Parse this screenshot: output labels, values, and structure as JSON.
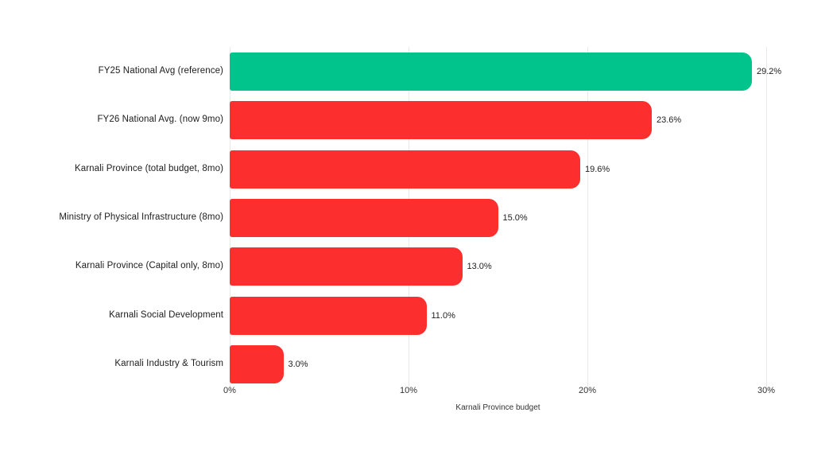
{
  "chart_data": {
    "type": "bar",
    "orientation": "horizontal",
    "title": "",
    "xlabel": "Karnali Province budget",
    "ylabel": "",
    "xlim": [
      0,
      30
    ],
    "grid": true,
    "gridline_color": "#e9e9e9",
    "categories": [
      "FY25 National Avg (reference)",
      "FY26 National Avg. (now 9mo)",
      "Karnali Province (total budget, 8mo)",
      "Ministry of Physical Infrastructure (8mo)",
      "Karnali Province (Capital only, 8mo)",
      "Karnali Social Development",
      "Karnali Industry & Tourism"
    ],
    "values": [
      29.2,
      23.6,
      19.6,
      15.0,
      13.0,
      11.0,
      3.0
    ],
    "value_labels": [
      "29.2%",
      "23.6%",
      "19.6%",
      "15.0%",
      "13.0%",
      "11.0%",
      "3.0%"
    ],
    "bar_colors": [
      "#00C48B",
      "#FC2E2E",
      "#FC2E2E",
      "#FC2E2E",
      "#FC2E2E",
      "#FC2E2E",
      "#FC2E2E"
    ],
    "highlight_color": "#00C48B",
    "default_color": "#FC2E2E",
    "x_ticks": [
      {
        "value": 0,
        "label": "0%"
      },
      {
        "value": 10,
        "label": "10%"
      },
      {
        "value": 20,
        "label": "20%"
      },
      {
        "value": 30,
        "label": "30%"
      }
    ]
  }
}
